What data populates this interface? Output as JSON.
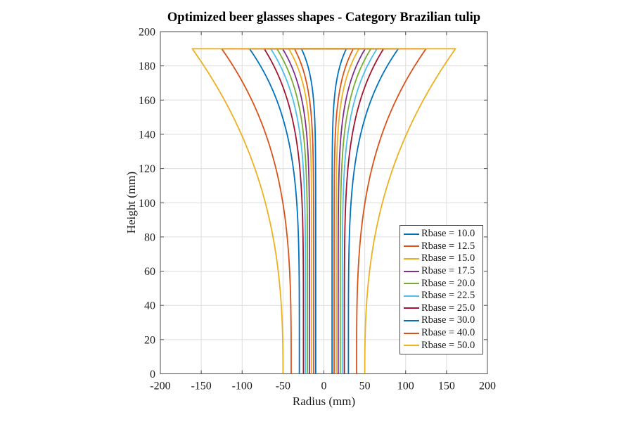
{
  "figure": {
    "title": "Optimized beer glasses shapes - Category Brazilian tulip",
    "xlabel": "Radius (mm)",
    "ylabel": "Height (mm)"
  },
  "chart_data": {
    "type": "line",
    "title": "Optimized beer glasses shapes - Category Brazilian tulip",
    "xlabel": "Radius (mm)",
    "ylabel": "Height (mm)",
    "xlim": [
      -200,
      200
    ],
    "ylim": [
      0,
      200
    ],
    "x_ticks": [
      -200,
      -150,
      -100,
      -50,
      0,
      50,
      100,
      150,
      200
    ],
    "y_ticks": [
      0,
      20,
      40,
      60,
      80,
      100,
      120,
      140,
      160,
      180,
      200
    ],
    "grid": true,
    "grid_color": "#dedede",
    "axis_color": "#4d4d4d",
    "text_color": "#1a1a1a",
    "legend_position": "inside-middle-right",
    "glass_height_mm": 190,
    "mirrored_about_x0": true,
    "rim_line_height_mm": 190,
    "series": [
      {
        "label": "Rbase = 10.0",
        "color": "#0072BD",
        "r_base": 10.0,
        "r_rim": 27.5,
        "flare_exponent": 11.0,
        "profile_h_r": [
          [
            0,
            10.0
          ],
          [
            50,
            10.0
          ],
          [
            100,
            10.0
          ],
          [
            150,
            11.3
          ],
          [
            170,
            15.1
          ],
          [
            190,
            27.5
          ]
        ]
      },
      {
        "label": "Rbase = 12.5",
        "color": "#D95319",
        "r_base": 12.5,
        "r_rim": 36.0,
        "flare_exponent": 9.0,
        "profile_h_r": [
          [
            0,
            12.5
          ],
          [
            50,
            12.5
          ],
          [
            100,
            12.6
          ],
          [
            150,
            15.3
          ],
          [
            170,
            21.1
          ],
          [
            190,
            36.0
          ]
        ]
      },
      {
        "label": "Rbase = 15.0",
        "color": "#EDB120",
        "r_base": 15.0,
        "r_rim": 43.0,
        "flare_exponent": 8.5,
        "profile_h_r": [
          [
            0,
            15.0
          ],
          [
            50,
            15.0
          ],
          [
            100,
            15.1
          ],
          [
            150,
            18.8
          ],
          [
            170,
            25.9
          ],
          [
            190,
            43.0
          ]
        ]
      },
      {
        "label": "Rbase = 17.5",
        "color": "#7E2F8E",
        "r_base": 17.5,
        "r_rim": 50.5,
        "flare_exponent": 7.3,
        "profile_h_r": [
          [
            0,
            17.5
          ],
          [
            50,
            17.5
          ],
          [
            100,
            17.8
          ],
          [
            150,
            23.4
          ],
          [
            170,
            32.2
          ],
          [
            190,
            50.5
          ]
        ]
      },
      {
        "label": "Rbase = 20.0",
        "color": "#77AC30",
        "r_base": 20.0,
        "r_rim": 57.5,
        "flare_exponent": 6.6,
        "profile_h_r": [
          [
            0,
            20.0
          ],
          [
            50,
            20.0
          ],
          [
            100,
            20.5
          ],
          [
            150,
            27.9
          ],
          [
            170,
            38.0
          ],
          [
            190,
            57.5
          ]
        ]
      },
      {
        "label": "Rbase = 22.5",
        "color": "#4DBEEE",
        "r_base": 22.5,
        "r_rim": 65.0,
        "flare_exponent": 6.0,
        "profile_h_r": [
          [
            0,
            22.5
          ],
          [
            50,
            22.5
          ],
          [
            100,
            23.4
          ],
          [
            150,
            32.8
          ],
          [
            170,
            44.3
          ],
          [
            190,
            65.0
          ]
        ]
      },
      {
        "label": "Rbase = 25.0",
        "color": "#A2142F",
        "r_base": 25.0,
        "r_rim": 73.0,
        "flare_exponent": 5.2,
        "profile_h_r": [
          [
            0,
            25.0
          ],
          [
            50,
            25.1
          ],
          [
            100,
            26.7
          ],
          [
            150,
            39.0
          ],
          [
            170,
            51.9
          ],
          [
            190,
            73.0
          ]
        ]
      },
      {
        "label": "Rbase = 30.0",
        "color": "#0072BD",
        "r_base": 30.0,
        "r_rim": 91.0,
        "flare_exponent": 4.6,
        "profile_h_r": [
          [
            0,
            30.0
          ],
          [
            50,
            30.2
          ],
          [
            100,
            33.2
          ],
          [
            150,
            50.6
          ],
          [
            170,
            66.6
          ],
          [
            190,
            91.0
          ]
        ]
      },
      {
        "label": "Rbase = 40.0",
        "color": "#D95319",
        "r_base": 40.0,
        "r_rim": 125.0,
        "flare_exponent": 3.3,
        "profile_h_r": [
          [
            0,
            40.0
          ],
          [
            50,
            41.0
          ],
          [
            100,
            50.2
          ],
          [
            150,
            79.0
          ],
          [
            170,
            98.9
          ],
          [
            190,
            125.0
          ]
        ]
      },
      {
        "label": "Rbase = 50.0",
        "color": "#EDB120",
        "r_base": 50.0,
        "r_rim": 161.0,
        "flare_exponent": 2.55,
        "profile_h_r": [
          [
            0,
            50.0
          ],
          [
            50,
            53.7
          ],
          [
            100,
            71.6
          ],
          [
            150,
            110.8
          ],
          [
            170,
            133.6
          ],
          [
            190,
            161.0
          ]
        ]
      }
    ]
  }
}
